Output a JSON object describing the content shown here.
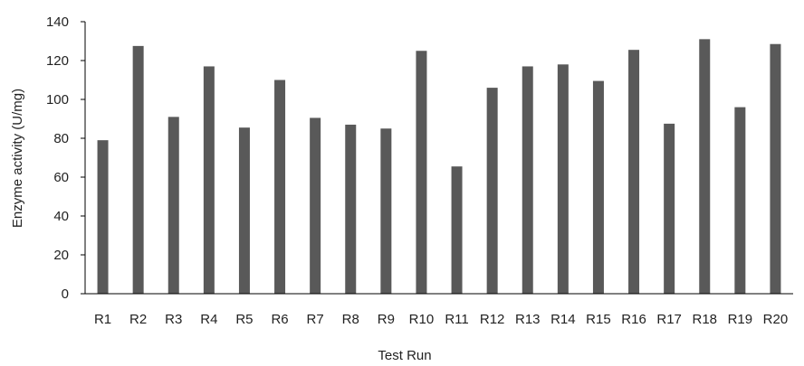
{
  "chart_data": {
    "type": "bar",
    "title": "",
    "xlabel": "Test Run",
    "ylabel": "Enzyme activity (U/mg)",
    "categories": [
      "R1",
      "R2",
      "R3",
      "R4",
      "R5",
      "R6",
      "R7",
      "R8",
      "R9",
      "R10",
      "R11",
      "R12",
      "R13",
      "R14",
      "R15",
      "R16",
      "R17",
      "R18",
      "R19",
      "R20"
    ],
    "values": [
      79,
      127.5,
      91,
      117,
      85.5,
      110,
      90.5,
      87,
      85,
      125,
      65.5,
      106,
      117,
      118,
      109.5,
      125.5,
      87.5,
      131,
      96,
      128.5
    ],
    "ylim": [
      0,
      140
    ],
    "yticks": [
      0,
      20,
      40,
      60,
      80,
      100,
      120,
      140
    ],
    "grid": false,
    "legend": "none",
    "bar_color": "#595959",
    "axis_color": "#000000"
  }
}
